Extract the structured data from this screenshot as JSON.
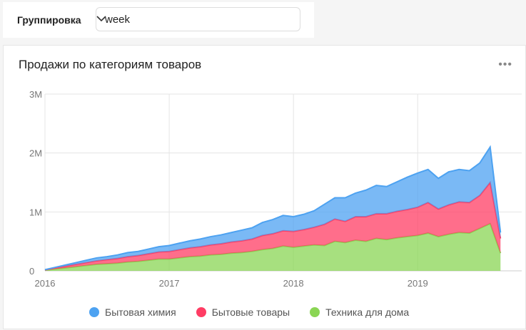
{
  "filter": {
    "label": "Группировка",
    "value": "week"
  },
  "chart_data": {
    "type": "area",
    "stacked": true,
    "title": "Продажи по категориям товаров",
    "x": [
      "2016-01",
      "2016-02",
      "2016-03",
      "2016-04",
      "2016-05",
      "2016-06",
      "2016-07",
      "2016-08",
      "2016-09",
      "2016-10",
      "2016-11",
      "2016-12",
      "2017-01",
      "2017-02",
      "2017-03",
      "2017-04",
      "2017-05",
      "2017-06",
      "2017-07",
      "2017-08",
      "2017-09",
      "2017-10",
      "2017-11",
      "2017-12",
      "2018-01",
      "2018-02",
      "2018-03",
      "2018-04",
      "2018-05",
      "2018-06",
      "2018-07",
      "2018-08",
      "2018-09",
      "2018-10",
      "2018-11",
      "2018-12",
      "2019-01",
      "2019-02",
      "2019-03",
      "2019-04",
      "2019-05",
      "2019-06",
      "2019-07",
      "2019-08",
      "2019-09"
    ],
    "x_ticks": [
      "2016",
      "2017",
      "2018",
      "2019"
    ],
    "y_ticks": [
      "0",
      "1M",
      "2M",
      "3M"
    ],
    "ylim": [
      0,
      3000000
    ],
    "grid": true,
    "legend": "bottom",
    "series": [
      {
        "name": "Бытовая химия",
        "color": "#4da2f1",
        "values": [
          5000,
          10000,
          20000,
          30000,
          40000,
          50000,
          50000,
          60000,
          70000,
          70000,
          80000,
          90000,
          100000,
          110000,
          120000,
          130000,
          140000,
          150000,
          160000,
          180000,
          190000,
          220000,
          240000,
          260000,
          250000,
          260000,
          280000,
          340000,
          360000,
          400000,
          400000,
          450000,
          480000,
          460000,
          500000,
          550000,
          580000,
          560000,
          520000,
          560000,
          550000,
          540000,
          550000,
          600000,
          100000
        ]
      },
      {
        "name": "Бытовые товары",
        "color": "#ff3d64",
        "values": [
          5000,
          20000,
          30000,
          40000,
          50000,
          60000,
          70000,
          80000,
          90000,
          100000,
          110000,
          120000,
          130000,
          140000,
          150000,
          160000,
          170000,
          180000,
          190000,
          200000,
          210000,
          240000,
          250000,
          260000,
          270000,
          280000,
          300000,
          360000,
          380000,
          360000,
          400000,
          420000,
          420000,
          440000,
          450000,
          460000,
          480000,
          520000,
          470000,
          500000,
          520000,
          520000,
          560000,
          700000,
          250000
        ]
      },
      {
        "name": "Техника для дома",
        "color": "#8ad554",
        "values": [
          10000,
          30000,
          50000,
          70000,
          90000,
          110000,
          120000,
          130000,
          150000,
          160000,
          180000,
          200000,
          200000,
          220000,
          240000,
          250000,
          270000,
          280000,
          300000,
          310000,
          330000,
          360000,
          380000,
          420000,
          400000,
          420000,
          440000,
          430000,
          500000,
          480000,
          520000,
          500000,
          550000,
          530000,
          560000,
          580000,
          600000,
          640000,
          580000,
          620000,
          650000,
          640000,
          720000,
          800000,
          300000
        ]
      }
    ]
  }
}
